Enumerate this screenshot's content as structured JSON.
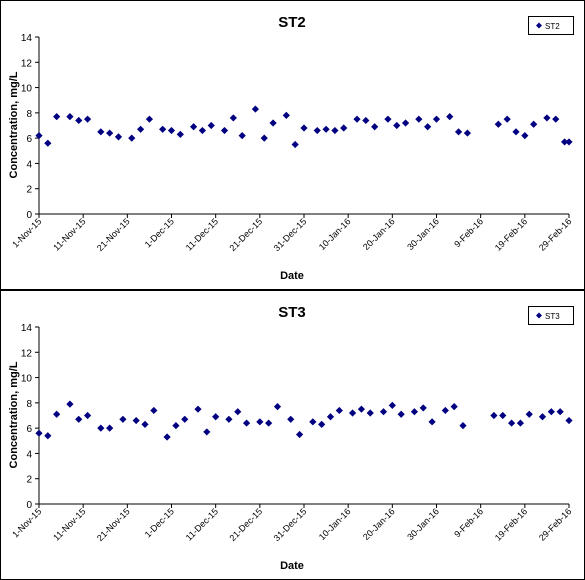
{
  "chart_data": [
    {
      "type": "scatter",
      "title": "ST2",
      "xlabel": "Date",
      "ylabel": "Concentration, mg/L",
      "ylim": [
        0,
        14
      ],
      "yticks": [
        0,
        2,
        4,
        6,
        8,
        10,
        12,
        14
      ],
      "xlim": [
        "2015-11-01",
        "2016-02-29"
      ],
      "xticks": [
        "2015-11-01",
        "2015-11-11",
        "2015-11-21",
        "2015-12-01",
        "2015-12-11",
        "2015-12-21",
        "2015-12-31",
        "2016-01-10",
        "2016-01-20",
        "2016-01-30",
        "2016-02-09",
        "2016-02-19",
        "2016-02-29"
      ],
      "xtick_labels": [
        "1-Nov-15",
        "11-Nov-15",
        "21-Nov-15",
        "1-Dec-15",
        "11-Dec-15",
        "21-Dec-15",
        "31-Dec-15",
        "10-Jan-16",
        "20-Jan-16",
        "30-Jan-16",
        "9-Feb-16",
        "19-Feb-16",
        "29-Feb-16"
      ],
      "grid": false,
      "legend_position": "top-right",
      "series": [
        {
          "name": "ST2",
          "color": "#000080",
          "marker": "diamond",
          "x": [
            "2015-11-01",
            "2015-11-03",
            "2015-11-05",
            "2015-11-08",
            "2015-11-10",
            "2015-11-12",
            "2015-11-15",
            "2015-11-17",
            "2015-11-19",
            "2015-11-22",
            "2015-11-24",
            "2015-11-26",
            "2015-11-29",
            "2015-12-01",
            "2015-12-03",
            "2015-12-06",
            "2015-12-08",
            "2015-12-10",
            "2015-12-13",
            "2015-12-15",
            "2015-12-17",
            "2015-12-20",
            "2015-12-22",
            "2015-12-24",
            "2015-12-27",
            "2015-12-29",
            "2015-12-31",
            "2016-01-03",
            "2016-01-05",
            "2016-01-07",
            "2016-01-09",
            "2016-01-12",
            "2016-01-14",
            "2016-01-16",
            "2016-01-19",
            "2016-01-21",
            "2016-01-23",
            "2016-01-26",
            "2016-01-28",
            "2016-01-30",
            "2016-02-02",
            "2016-02-04",
            "2016-02-06",
            "2016-02-13",
            "2016-02-15",
            "2016-02-17",
            "2016-02-19",
            "2016-02-21",
            "2016-02-24",
            "2016-02-26",
            "2016-02-28",
            "2016-02-29"
          ],
          "y": [
            6.2,
            5.6,
            7.7,
            7.7,
            7.4,
            7.5,
            6.5,
            6.4,
            6.1,
            6.0,
            6.7,
            7.5,
            6.7,
            6.6,
            6.3,
            6.9,
            6.6,
            7.0,
            6.6,
            7.6,
            6.2,
            8.3,
            6.0,
            7.2,
            7.8,
            5.5,
            6.8,
            6.6,
            6.7,
            6.6,
            6.8,
            7.5,
            7.4,
            6.9,
            7.5,
            7.0,
            7.2,
            7.5,
            6.9,
            7.5,
            7.7,
            6.5,
            6.4,
            7.1,
            7.5,
            6.5,
            6.2,
            7.1,
            7.6,
            7.5,
            5.7,
            5.7
          ]
        }
      ]
    },
    {
      "type": "scatter",
      "title": "ST3",
      "xlabel": "Date",
      "ylabel": "Concentration, mg/L",
      "ylim": [
        0,
        14
      ],
      "yticks": [
        0,
        2,
        4,
        6,
        8,
        10,
        12,
        14
      ],
      "xlim": [
        "2015-11-01",
        "2016-02-29"
      ],
      "xticks": [
        "2015-11-01",
        "2015-11-11",
        "2015-11-21",
        "2015-12-01",
        "2015-12-11",
        "2015-12-21",
        "2015-12-31",
        "2016-01-10",
        "2016-01-20",
        "2016-01-30",
        "2016-02-09",
        "2016-02-19",
        "2016-02-29"
      ],
      "xtick_labels": [
        "1-Nov-15",
        "11-Nov-15",
        "21-Nov-15",
        "1-Dec-15",
        "11-Dec-15",
        "21-Dec-15",
        "31-Dec-15",
        "10-Jan-16",
        "20-Jan-16",
        "30-Jan-16",
        "9-Feb-16",
        "19-Feb-16",
        "29-Feb-16"
      ],
      "grid": false,
      "legend_position": "top-right",
      "series": [
        {
          "name": "ST3",
          "color": "#000080",
          "marker": "diamond",
          "x": [
            "2015-11-01",
            "2015-11-03",
            "2015-11-05",
            "2015-11-08",
            "2015-11-10",
            "2015-11-12",
            "2015-11-15",
            "2015-11-17",
            "2015-11-20",
            "2015-11-23",
            "2015-11-25",
            "2015-11-27",
            "2015-11-30",
            "2015-12-02",
            "2015-12-04",
            "2015-12-07",
            "2015-12-09",
            "2015-12-11",
            "2015-12-14",
            "2015-12-16",
            "2015-12-18",
            "2015-12-21",
            "2015-12-23",
            "2015-12-25",
            "2015-12-28",
            "2015-12-30",
            "2016-01-02",
            "2016-01-04",
            "2016-01-06",
            "2016-01-08",
            "2016-01-11",
            "2016-01-13",
            "2016-01-15",
            "2016-01-18",
            "2016-01-20",
            "2016-01-22",
            "2016-01-25",
            "2016-01-27",
            "2016-01-29",
            "2016-02-01",
            "2016-02-03",
            "2016-02-05",
            "2016-02-12",
            "2016-02-14",
            "2016-02-16",
            "2016-02-18",
            "2016-02-20",
            "2016-02-23",
            "2016-02-25",
            "2016-02-27",
            "2016-02-29"
          ],
          "y": [
            5.6,
            5.4,
            7.1,
            7.9,
            6.7,
            7.0,
            6.0,
            6.0,
            6.7,
            6.6,
            6.3,
            7.4,
            5.3,
            6.2,
            6.7,
            7.5,
            5.7,
            6.9,
            6.7,
            7.3,
            6.4,
            6.5,
            6.4,
            7.7,
            6.7,
            5.5,
            6.5,
            6.3,
            6.9,
            7.4,
            7.2,
            7.5,
            7.2,
            7.3,
            7.8,
            7.1,
            7.3,
            7.6,
            6.5,
            7.4,
            7.7,
            6.2,
            7.0,
            7.0,
            6.4,
            6.4,
            7.1,
            6.9,
            7.3,
            7.3,
            6.6
          ]
        }
      ]
    }
  ]
}
